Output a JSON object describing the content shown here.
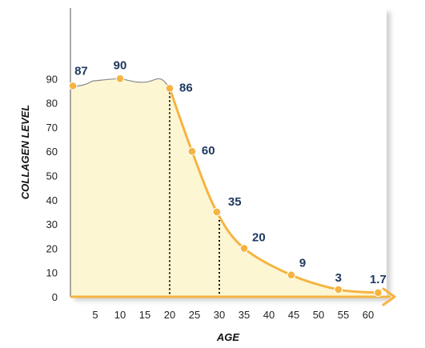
{
  "chart_data": {
    "type": "area",
    "title": "",
    "xlabel": "AGE",
    "ylabel": "COLLAGEN LEVEL",
    "xlim": [
      0,
      65
    ],
    "ylim": [
      0,
      120
    ],
    "x_ticks": [
      5,
      10,
      15,
      20,
      25,
      30,
      35,
      40,
      45,
      50,
      55,
      60
    ],
    "y_ticks": [
      0,
      10,
      20,
      30,
      40,
      50,
      60,
      70,
      80,
      90
    ],
    "grid": false,
    "colors": {
      "line": "#f5b441",
      "fill": "#fdf6d3",
      "early_curve": "#8a8a8a",
      "labels": "#1f3a60",
      "shadow": "#d0d0d0"
    },
    "points": [
      {
        "x": 0.5,
        "y": 87,
        "label": "87"
      },
      {
        "x": 10,
        "y": 90,
        "label": "90"
      },
      {
        "x": 20,
        "y": 86,
        "label": "86"
      },
      {
        "x": 24.5,
        "y": 60,
        "label": "60"
      },
      {
        "x": 29.5,
        "y": 35,
        "label": "35"
      },
      {
        "x": 35,
        "y": 20,
        "label": "20"
      },
      {
        "x": 44.5,
        "y": 9,
        "label": "9"
      },
      {
        "x": 54,
        "y": 3,
        "label": "3"
      },
      {
        "x": 62,
        "y": 1.7,
        "label": "1.7"
      }
    ],
    "reference_lines_x": [
      20,
      30
    ]
  }
}
